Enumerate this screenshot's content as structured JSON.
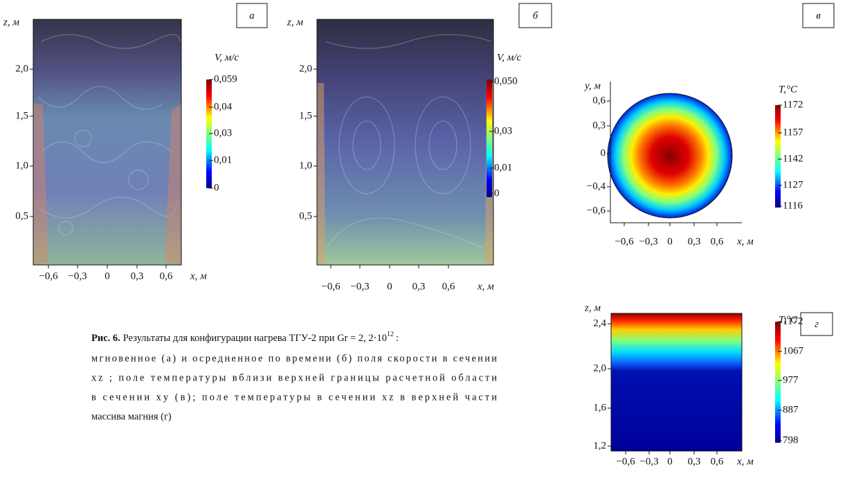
{
  "panels": {
    "a": {
      "label": "а",
      "y_axis": "z, м",
      "x_axis": "x, м",
      "yticks": [
        "2,0",
        "1,5",
        "1,0",
        "0,5"
      ],
      "xticks": [
        "−0,6",
        "−0,3",
        "0",
        "0,3",
        "0,6"
      ],
      "colorbar": {
        "title": "V, м/с",
        "ticks": [
          "0,059",
          "0,04",
          "0,03",
          "0,01",
          "0"
        ]
      }
    },
    "b": {
      "label": "б",
      "y_axis": "z, м",
      "x_axis": "x, м",
      "yticks": [
        "2,0",
        "1,5",
        "1,0",
        "0,5"
      ],
      "xticks": [
        "−0,6",
        "−0,3",
        "0",
        "0,3",
        "0,6"
      ],
      "colorbar": {
        "title": "V, м/с",
        "ticks": [
          "0,050",
          "0,03",
          "0,01",
          "0"
        ]
      }
    },
    "v": {
      "label": "в",
      "y_axis": "y, м",
      "x_axis": "x, м",
      "yticks": [
        "0,6",
        "0,3",
        "0",
        "−0,4",
        "−0,6"
      ],
      "xticks": [
        "−0,6",
        "−0,3",
        "0",
        "0,3",
        "0,6"
      ],
      "colorbar": {
        "title": "T,°C",
        "ticks": [
          "1172",
          "1157",
          "1142",
          "1127",
          "1116"
        ]
      }
    },
    "g": {
      "label": "г",
      "y_axis": "z, м",
      "x_axis": "x, м",
      "yticks": [
        "2,4",
        "2,0",
        "1,6",
        "1,2"
      ],
      "xticks": [
        "−0,6",
        "−0,3",
        "0",
        "0,3",
        "0,6"
      ],
      "colorbar": {
        "title": "T,°C",
        "ticks": [
          "1172",
          "1067",
          "977",
          "887",
          "798"
        ]
      }
    }
  },
  "caption": {
    "label": "Рис. 6.",
    "line1": "Результаты для конфигурации нагрева ТГУ-2 при  Gr = 2, 2·10",
    "exponent": "12",
    "line1_end": ":",
    "lines": [
      "мгновенное (а) и осредненное по времени (б) поля скорости в сечении",
      "xz ; поле температуры вблизи верхней границы расчетной области",
      "в сечении xy (в); поле температуры в сечении  xz  в верхней части",
      "массива магния (г)"
    ]
  }
}
